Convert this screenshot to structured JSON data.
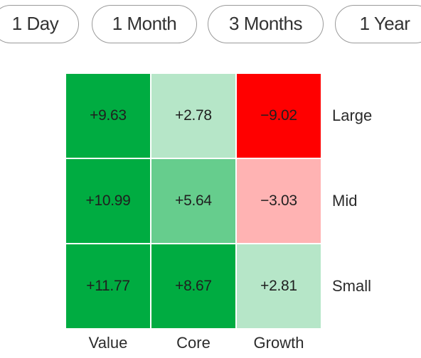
{
  "tabs": [
    {
      "label": "1 Day",
      "active": false
    },
    {
      "label": "1 Month",
      "active": false
    },
    {
      "label": "3 Months",
      "active": true
    },
    {
      "label": "1 Year",
      "active": false
    }
  ],
  "style_box": {
    "rows": [
      "Large",
      "Mid",
      "Small"
    ],
    "columns": [
      "Value",
      "Core",
      "Growth"
    ],
    "cells": [
      [
        {
          "value": "+9.63",
          "color": "#00ac41"
        },
        {
          "value": "+2.78",
          "color": "#b6e6c8"
        },
        {
          "value": "−9.02",
          "color": "#ff0000"
        }
      ],
      [
        {
          "value": "+10.99",
          "color": "#00ac41"
        },
        {
          "value": "+5.64",
          "color": "#66cd8d"
        },
        {
          "value": "−3.03",
          "color": "#ffb3b3"
        }
      ],
      [
        {
          "value": "+11.77",
          "color": "#00ac41"
        },
        {
          "value": "+8.67",
          "color": "#00ac41"
        },
        {
          "value": "+2.81",
          "color": "#b6e6c8"
        }
      ]
    ]
  }
}
